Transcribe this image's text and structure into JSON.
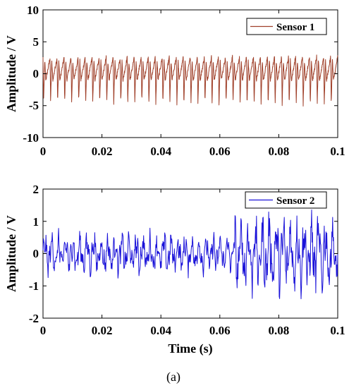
{
  "figure": {
    "caption": "(a)"
  },
  "chart_data": [
    {
      "type": "line",
      "xlabel": "",
      "ylabel": "Amplitude / V",
      "xlim": [
        0,
        0.1
      ],
      "ylim": [
        -10,
        10
      ],
      "xticks": [
        "0",
        "0.02",
        "0.04",
        "0.06",
        "0.08",
        "0.1"
      ],
      "yticks": [
        "10",
        "5",
        "0",
        "-5",
        "-10"
      ],
      "legend_position": "top-right",
      "series": [
        {
          "name": "Sensor 1",
          "color": "#a0412b",
          "approx_fundamental_hz": 420,
          "amplitude_range_v": [
            -5,
            4.5
          ],
          "sample_points": [
            {
              "x": 0.0,
              "y": 2.5
            },
            {
              "x": 0.0012,
              "y": -4.5
            },
            {
              "x": 0.003,
              "y": 2.8
            },
            {
              "x": 0.0045,
              "y": -3.5
            },
            {
              "x": 0.02,
              "y": -3.0
            },
            {
              "x": 0.04,
              "y": -3.5
            },
            {
              "x": 0.06,
              "y": 3.5
            },
            {
              "x": 0.08,
              "y": 4.5
            },
            {
              "x": 0.085,
              "y": -4.8
            },
            {
              "x": 0.1,
              "y": 3.5
            }
          ]
        }
      ]
    },
    {
      "type": "line",
      "xlabel": "Time (s)",
      "ylabel": "Amplitude / V",
      "xlim": [
        0,
        0.1
      ],
      "ylim": [
        -2,
        2
      ],
      "xticks": [
        "0",
        "0.02",
        "0.04",
        "0.06",
        "0.08",
        "0.1"
      ],
      "yticks": [
        "2",
        "1",
        "0",
        "-1",
        "-2"
      ],
      "legend_position": "top-right",
      "series": [
        {
          "name": "Sensor 2",
          "color": "#1a12d9",
          "approx_fundamental_hz": 420,
          "amplitude_range_v": [
            -1.5,
            1.3
          ],
          "sample_points": [
            {
              "x": 0.0,
              "y": -0.5
            },
            {
              "x": 0.01,
              "y": -0.7
            },
            {
              "x": 0.015,
              "y": 0.9
            },
            {
              "x": 0.03,
              "y": 0.6
            },
            {
              "x": 0.05,
              "y": 0.4
            },
            {
              "x": 0.07,
              "y": -1.5
            },
            {
              "x": 0.076,
              "y": 1.0
            },
            {
              "x": 0.085,
              "y": 1.3
            },
            {
              "x": 0.096,
              "y": 1.2
            },
            {
              "x": 0.1,
              "y": -1.3
            }
          ]
        }
      ]
    }
  ],
  "colors": {
    "axes": "#000000",
    "background": "#ffffff"
  }
}
